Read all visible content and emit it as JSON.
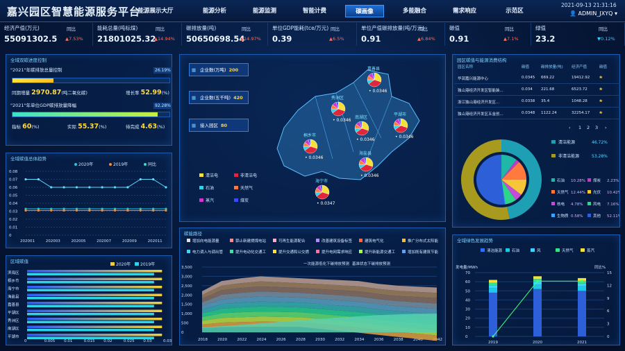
{
  "header": {
    "title": "嘉兴园区智慧能源服务平台",
    "datetime": "2021-09-13 21:31:16",
    "user": "ADMIN_JXYQ",
    "nav": [
      "能源展示大厅",
      "能源分析",
      "能源监测",
      "智能计费",
      "碳画像",
      "多能融合",
      "需求响应",
      "示范区"
    ],
    "active_nav": "碳画像"
  },
  "kpis": [
    {
      "label": "经济产值(万元)",
      "value": "55091302.5",
      "yoy_label": "同比",
      "yoy": "7.53%",
      "dir": "up"
    },
    {
      "label": "能耗总量(吨标煤)",
      "value": "21801025.32",
      "yoy_label": "同比",
      "yoy": "14.94%",
      "dir": "up"
    },
    {
      "label": "碳排放量(吨)",
      "value": "50650698.54",
      "yoy_label": "同比",
      "yoy": "14.97%",
      "dir": "up"
    },
    {
      "label": "单位GDP能耗(tce/万元)",
      "value": "0.39",
      "yoy_label": "同比",
      "yoy": "6.5%",
      "dir": "up"
    },
    {
      "label": "单位产值碳排放量(吨/万元)",
      "value": "0.91",
      "yoy_label": "同比",
      "yoy": "6.84%",
      "dir": "up"
    },
    {
      "label": "碳值",
      "value": "0.91",
      "yoy_label": "同比",
      "yoy": "7.1%",
      "dir": "up"
    },
    {
      "label": "绿值",
      "value": "23.2",
      "yoy_label": "同比",
      "yoy": "0.12%",
      "dir": "dn"
    }
  ],
  "target": {
    "title": "全域双碳进度控制",
    "item1": {
      "label": "\"2021\"年碳排放总量控制",
      "pct": "26.19%",
      "pct_val": 26.19,
      "l1": "同期增量",
      "v1": "2970.87",
      "u1": "(吨二氧化碳)",
      "l2": "增长率",
      "v2": "52.99",
      "u2": "(%)"
    },
    "item2": {
      "label": "\"2021\"年单位GDP碳排放量降幅",
      "pct": "92.28%",
      "pct_val": 92.28,
      "l1": "指标",
      "v1": "60",
      "u1": "(%)",
      "l2": "实际",
      "v2": "55.37",
      "u2": "(%)",
      "l3": "待完成",
      "v3": "4.63",
      "u3": "(%)"
    }
  },
  "trend": {
    "title": "全域碳值总体趋势",
    "legend": [
      "2020年",
      "2019年",
      "同比"
    ],
    "x": [
      "202001",
      "202003",
      "202005",
      "202007",
      "202009",
      "202011"
    ],
    "yticks": [
      "0.08",
      "0.07",
      "0.06",
      "0.05",
      "0.04",
      "0.03",
      "0.02",
      "0.01",
      "0"
    ]
  },
  "region": {
    "title": "区域碳值",
    "legend": [
      "2020年",
      "2019年"
    ],
    "names": [
      "滨海区",
      "桐乡市",
      "海宁市",
      "海盐县",
      "嘉善县",
      "平湖区",
      "秀洲区",
      "南湖区",
      "平湖市"
    ],
    "xticks": [
      "0",
      "0.005",
      "0.01",
      "0.015",
      "0.02",
      "0.025",
      "0.03",
      "0.035"
    ]
  },
  "map": {
    "boxes": [
      {
        "label": "企业数(万吨)",
        "value": "200"
      },
      {
        "label": "企业数(五千吨)",
        "value": "420"
      },
      {
        "label": "接入园区",
        "value": "80"
      }
    ],
    "districts": [
      {
        "name": "嘉善县",
        "val": "0.0346"
      },
      {
        "name": "秀洲区",
        "val": "0.0346"
      },
      {
        "name": "南湖区",
        "val": "0.0346"
      },
      {
        "name": "平湖市",
        "val": "0.0346"
      },
      {
        "name": "桐乡市",
        "val": "0.0346"
      },
      {
        "name": "海盐县",
        "val": "0.0346"
      },
      {
        "name": "海宁市",
        "val": "0.0347"
      }
    ],
    "legend": [
      "清洁电",
      "非清洁电",
      "石油",
      "天然气",
      "蒸汽",
      "煤炭"
    ]
  },
  "path": {
    "title": "碳能路径",
    "legend": [
      "增加向电能源量",
      "禁止新建燃煤电站",
      "可再生能源配合",
      "改善建筑设备标签",
      "建筑电气化",
      "推广分布式太阳能",
      "电力调入与调出管理",
      "提升电动化交通工具供给占比",
      "提升交通和公交燃油的经济性",
      "提升电网需求响应",
      "提升新能源交通工具供给占比",
      "增加既有建筑节能改造"
    ],
    "notes": [
      "一次能源低化下碳排放预测",
      "基准状态下碳排放预测"
    ],
    "x": [
      "2018",
      "2020",
      "2022",
      "2024",
      "2026",
      "2028",
      "2030",
      "2032",
      "2034",
      "2036",
      "2038",
      "2040",
      "2042"
    ],
    "yticks": [
      "3,500",
      "3,000",
      "2,500",
      "2,000",
      "1,500",
      "1,000",
      "500",
      "0"
    ]
  },
  "structure": {
    "title": "园区碳值与能源消费结构",
    "headers": [
      "园区名称",
      "碳值",
      "碳排放量(吨)",
      "经济产值",
      "碳值"
    ],
    "rows": [
      [
        "华润嘉兴能源中心",
        "0.0345",
        "669.22",
        "19412.92",
        "❀"
      ],
      [
        "独山港经济开发区智能装...",
        "0.034",
        "221.68",
        "6523.72",
        "❀"
      ],
      [
        "浙江独山港经济开发区...",
        "0.0338",
        "35.4",
        "1048.28",
        "❀"
      ],
      [
        "独山港经济开发区五金创...",
        "0.0348",
        "1122.24",
        "32254.17",
        "❀"
      ]
    ],
    "pages": [
      "1",
      "2",
      "3"
    ],
    "donut": [
      {
        "name": "清洁能源",
        "pct": "46.72%",
        "v": 46.72,
        "color": "#1f9fb4"
      },
      {
        "name": "非清洁能源",
        "pct": "53.28%",
        "v": 53.28,
        "color": "#a89a1e"
      }
    ],
    "inner": [
      {
        "name": "石油",
        "pct": "10.28%",
        "color": "#1fb8a8"
      },
      {
        "name": "煤炭",
        "pct": "2.23%",
        "color": "#c23cc2"
      },
      {
        "name": "天然气",
        "pct": "12.44%",
        "color": "#ff7a3c"
      },
      {
        "name": "光伏",
        "pct": "10.42%",
        "color": "#f5c63a"
      },
      {
        "name": "核电",
        "pct": "4.78%",
        "color": "#c64bd6"
      },
      {
        "name": "风电",
        "pct": "7.16%",
        "color": "#2ed48a"
      },
      {
        "name": "生物质",
        "pct": "0.58%",
        "color": "#37a4ff"
      },
      {
        "name": "其他",
        "pct": "52.11%",
        "color": "#2c5fd8"
      }
    ]
  },
  "green": {
    "title": "全域绿色发展趋势",
    "ylabel": "发电量/MWh",
    "y2label": "同比%",
    "legend": [
      "清洁能源",
      "石油",
      "风",
      "天然气",
      "蒸汽"
    ],
    "x": [
      "2019",
      "2020",
      "2021"
    ],
    "yticks": [
      "70",
      "60",
      "50",
      "40",
      "30",
      "20",
      "10",
      "0"
    ],
    "y2ticks": [
      "15",
      "12",
      "9",
      "6",
      "3",
      "0"
    ]
  },
  "chart_data": [
    {
      "type": "line",
      "title": "全域碳值总体趋势",
      "categories": [
        "202001",
        "202002",
        "202003",
        "202004",
        "202005",
        "202006",
        "202007",
        "202008",
        "202009",
        "202010",
        "202011",
        "202012"
      ],
      "series": [
        {
          "name": "2020年",
          "values": [
            0.033,
            0.033,
            0.033,
            0.033,
            0.033,
            0.033,
            0.033,
            0.033,
            0.033,
            0.033,
            0.033,
            0.033
          ]
        },
        {
          "name": "2019年",
          "values": [
            0.031,
            0.031,
            0.031,
            0.031,
            0.031,
            0.031,
            0.031,
            0.031,
            0.031,
            0.031,
            0.031,
            0.031
          ]
        },
        {
          "name": "同比",
          "values": [
            0.07,
            0.07,
            0.06,
            0.06,
            0.06,
            0.06,
            0.06,
            0.06,
            0.06,
            0.07,
            0.07,
            0.06
          ]
        }
      ],
      "ylim": [
        0,
        0.08
      ]
    },
    {
      "type": "bar",
      "title": "区域碳值",
      "categories": [
        "滨海区",
        "桐乡市",
        "海宁市",
        "海盐县",
        "嘉善县",
        "平湖区",
        "秀洲区",
        "南湖区",
        "平湖市"
      ],
      "series": [
        {
          "name": "2020年",
          "values": [
            0.034,
            0.034,
            0.034,
            0.034,
            0.034,
            0.034,
            0.034,
            0.034,
            0.034
          ]
        },
        {
          "name": "2019年",
          "values": [
            0.032,
            0.032,
            0.032,
            0.032,
            0.032,
            0.032,
            0.032,
            0.032,
            0.032
          ]
        }
      ],
      "xlim": [
        0,
        0.035
      ]
    },
    {
      "type": "area",
      "title": "碳能路径",
      "x": [
        2018,
        2020,
        2022,
        2024,
        2026,
        2028,
        2030,
        2032,
        2034,
        2036,
        2038,
        2040,
        2042
      ],
      "series": [
        {
          "name": "总量",
          "values": [
            2200,
            2750,
            2900,
            3000,
            2950,
            2900,
            2850,
            2800,
            2750,
            2600,
            2500,
            2450,
            2400
          ]
        },
        {
          "name": "基准",
          "values": [
            250,
            330,
            400,
            480,
            560,
            640,
            720,
            790,
            860,
            920,
            960,
            990,
            1000
          ]
        }
      ],
      "ylim": [
        0,
        3500
      ]
    },
    {
      "type": "bar",
      "title": "全域绿色发展趋势",
      "categories": [
        "2019",
        "2020",
        "2021"
      ],
      "series": [
        {
          "name": "清洁能源",
          "values": [
            48,
            52,
            50
          ]
        },
        {
          "name": "石油",
          "values": [
            5,
            5,
            5
          ]
        },
        {
          "name": "风",
          "values": [
            3,
            3,
            3
          ]
        },
        {
          "name": "天然气",
          "values": [
            3,
            3,
            3
          ]
        },
        {
          "name": "蒸汽",
          "values": [
            3,
            3,
            3
          ]
        },
        {
          "name": "同比",
          "values": [
            0,
            13,
            13
          ]
        }
      ],
      "ylim": [
        0,
        70
      ]
    }
  ]
}
